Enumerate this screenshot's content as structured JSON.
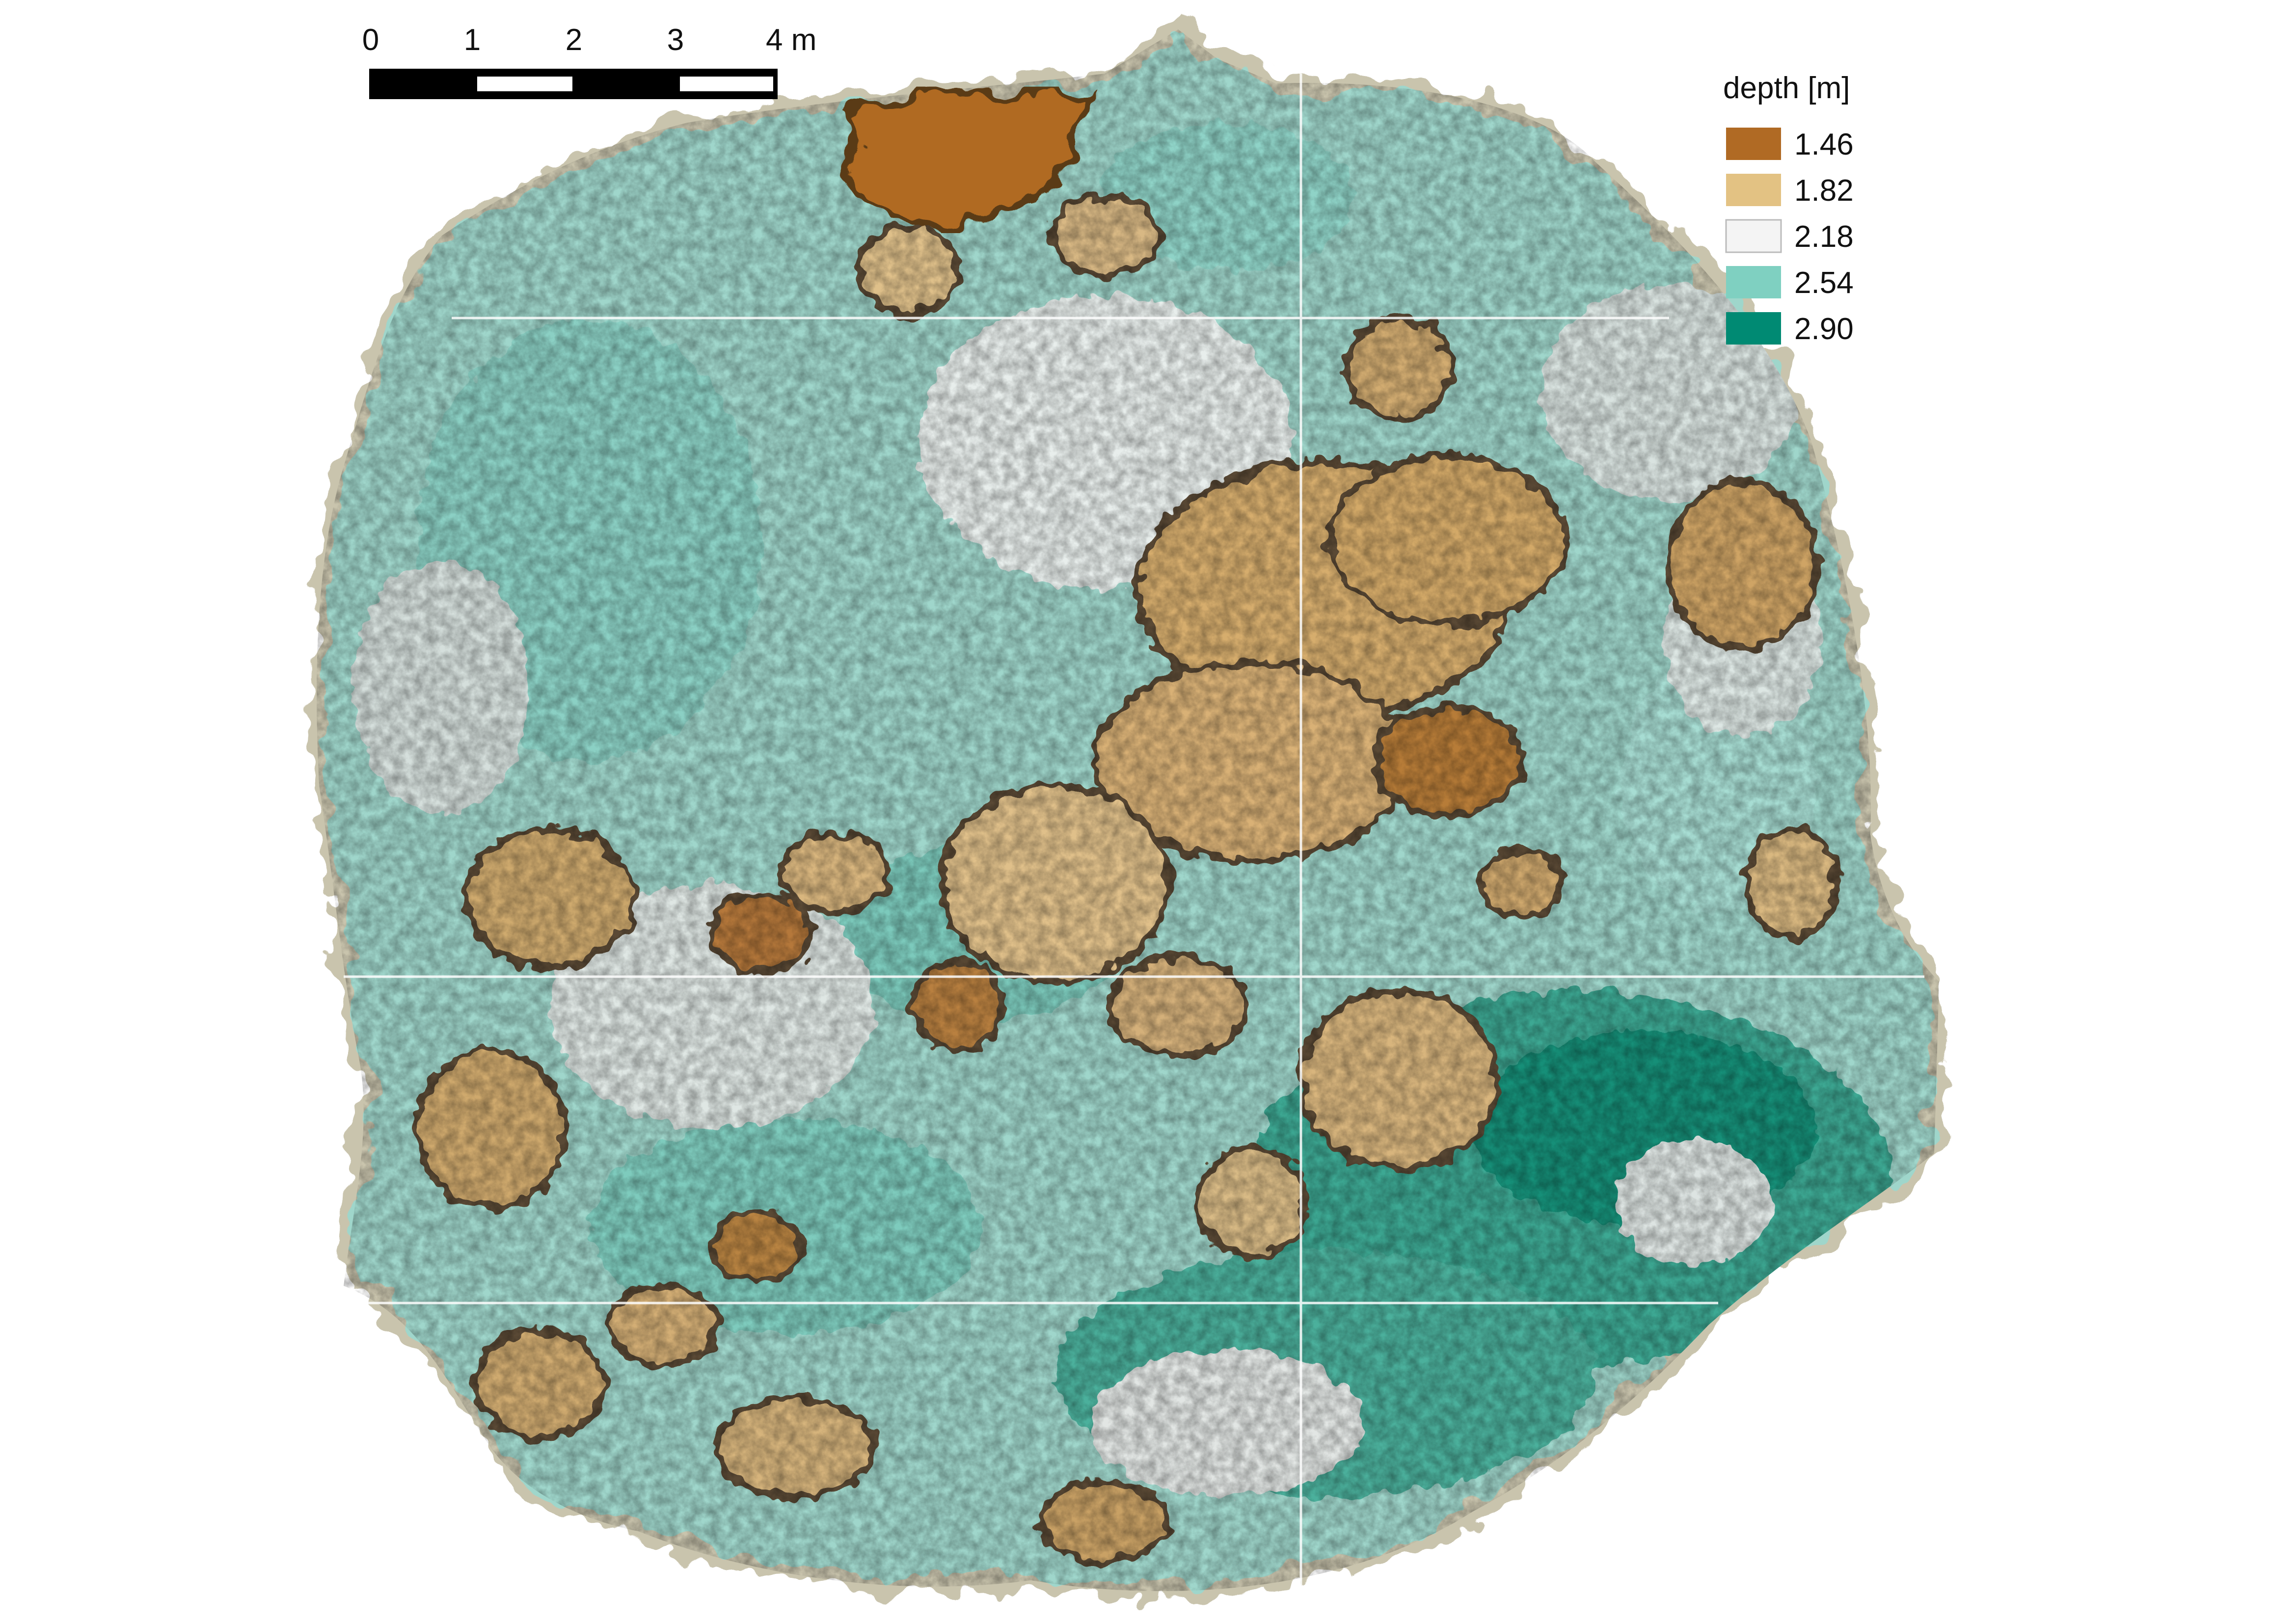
{
  "map": {
    "type": "bathymetric-orthomosaic",
    "description_icon": "reef-depth-map-icon"
  },
  "scale_bar": {
    "ticks": [
      "0",
      "1",
      "2",
      "3",
      "4 m"
    ],
    "colors": [
      "#000000",
      "#ffffff"
    ]
  },
  "legend": {
    "title": "depth [m]",
    "entries": [
      {
        "label": "1.46",
        "color": "#b06a24"
      },
      {
        "label": "1.82",
        "color": "#e3c283"
      },
      {
        "label": "2.18",
        "color": "#f4f4f4"
      },
      {
        "label": "2.54",
        "color": "#7fd0c1"
      },
      {
        "label": "2.90",
        "color": "#008a73"
      }
    ]
  }
}
